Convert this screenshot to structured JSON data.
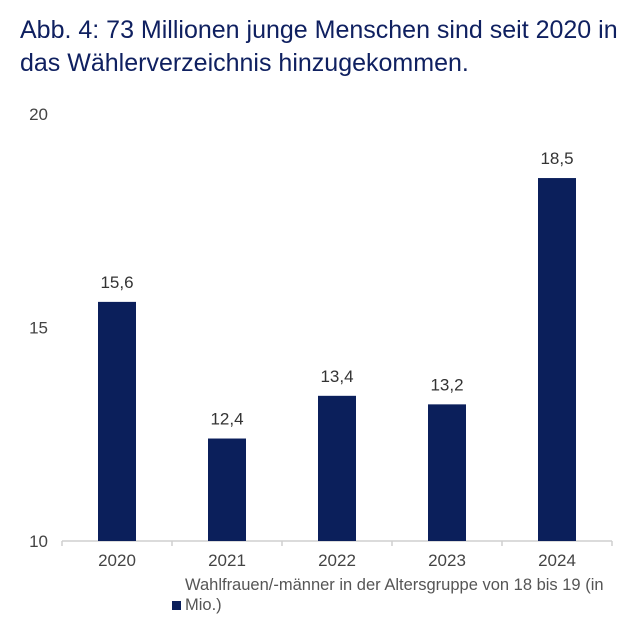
{
  "chart_data": {
    "type": "bar",
    "title": "Abb. 4: 73 Millionen junge Menschen sind seit 2020 in das Wählerverzeichnis hinzugekommen.",
    "categories": [
      "2020",
      "2021",
      "2022",
      "2023",
      "2024"
    ],
    "series": [
      {
        "name": "Wahlfrauen/-männer in der Altersgruppe von 18 bis 19 (in Mio.)",
        "values": [
          15.6,
          12.4,
          13.4,
          13.2,
          18.5
        ]
      }
    ],
    "data_labels": [
      "15,6",
      "12,4",
      "13,4",
      "13,2",
      "18,5"
    ],
    "y_ticks": [
      "10",
      "15",
      "20"
    ],
    "ylim": [
      10,
      20
    ],
    "xlabel": "",
    "ylabel": "",
    "grid": false,
    "legend_position": "bottom",
    "colors": {
      "bar": "#0b1f5b",
      "title": "#0f2060"
    }
  }
}
